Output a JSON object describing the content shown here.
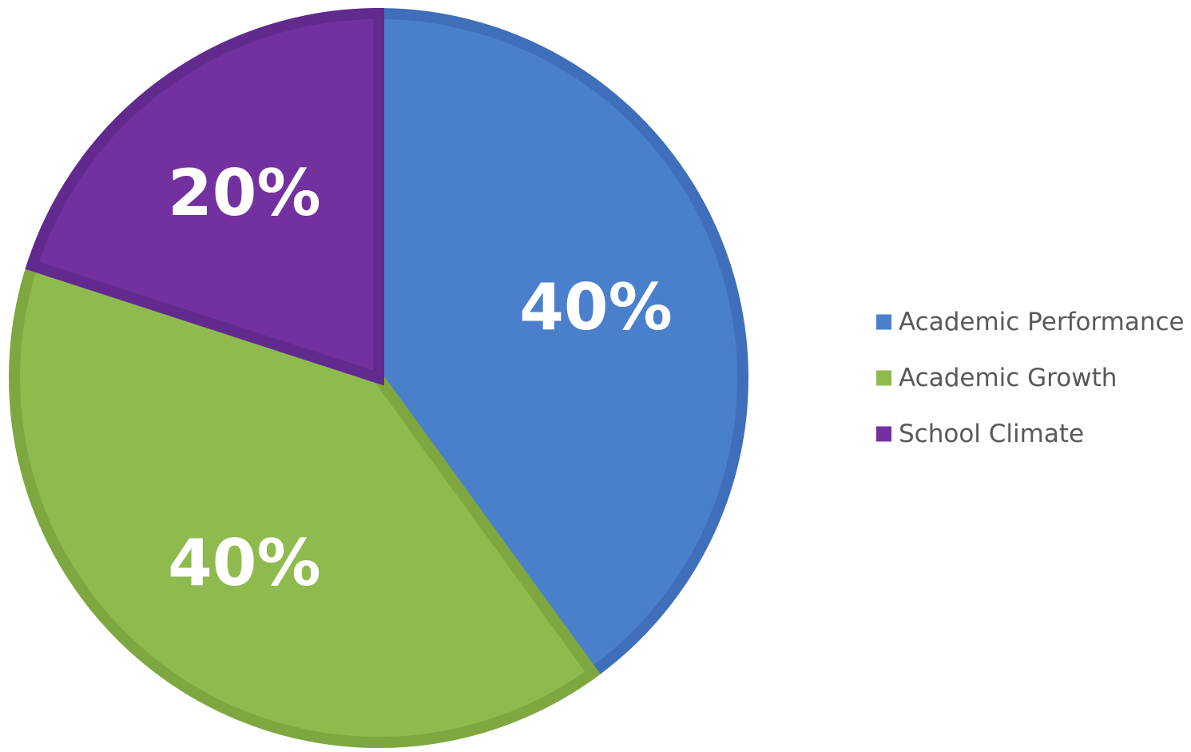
{
  "chart_data": {
    "type": "pie",
    "title": "",
    "categories": [
      "Academic Performance",
      "Academic Growth",
      "School Climate"
    ],
    "values": [
      40,
      40,
      20
    ],
    "labels": [
      "40%",
      "40%",
      "20%"
    ],
    "colors": [
      "#4a7fcc",
      "#8fba4e",
      "#7331a0"
    ],
    "border_colors": [
      "#3f6fba",
      "#7ea83f",
      "#622a8f"
    ],
    "start_angle_deg": 0,
    "direction": "clockwise",
    "legend": {
      "position": "right",
      "entries": [
        "Academic Performance",
        "Academic Growth",
        "School Climate"
      ]
    }
  }
}
